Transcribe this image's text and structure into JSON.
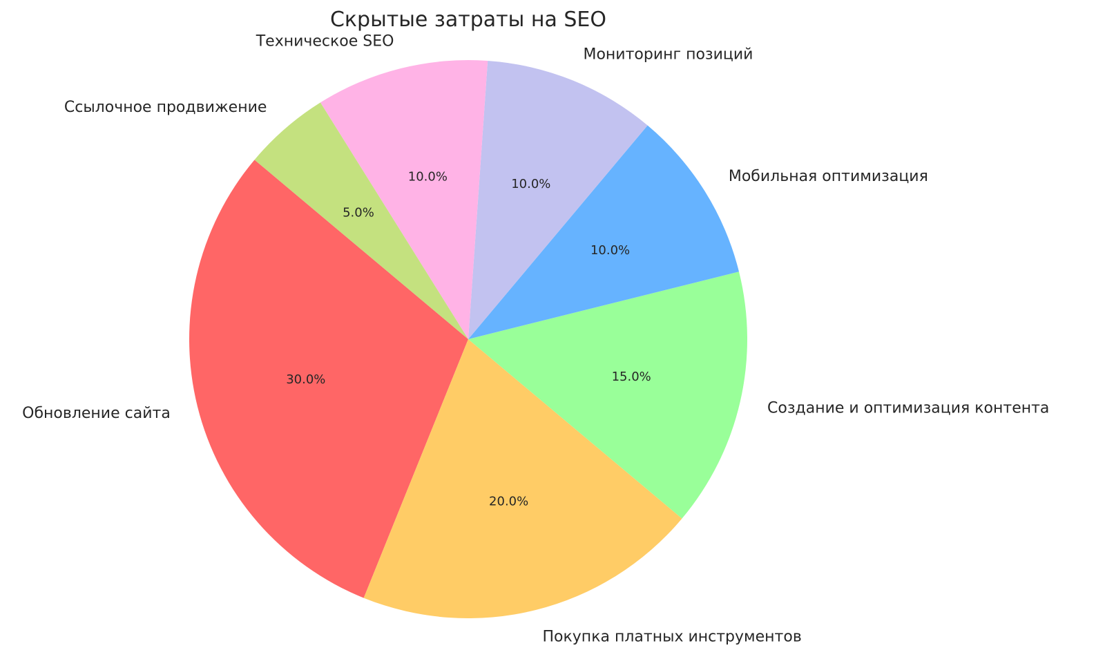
{
  "chart_data": {
    "type": "pie",
    "title": "Скрытые затраты на SEO",
    "start_angle_deg": 140,
    "direction": "counterclockwise",
    "categories": [
      "Обновление сайта",
      "Покупка платных инструментов",
      "Создание и оптимизация контента",
      "Мобильная оптимизация",
      "Мониторинг позиций",
      "Техническое SEO",
      "Ссылочное продвижение"
    ],
    "values": [
      30,
      20,
      15,
      10,
      10,
      10,
      5
    ],
    "value_labels": [
      "30.0%",
      "20.0%",
      "15.0%",
      "10.0%",
      "10.0%",
      "10.0%",
      "5.0%"
    ],
    "colors": [
      "#ff6666",
      "#ffcc66",
      "#99ff99",
      "#66b3ff",
      "#c2c2f0",
      "#ffb3e6",
      "#c4e17f"
    ]
  }
}
